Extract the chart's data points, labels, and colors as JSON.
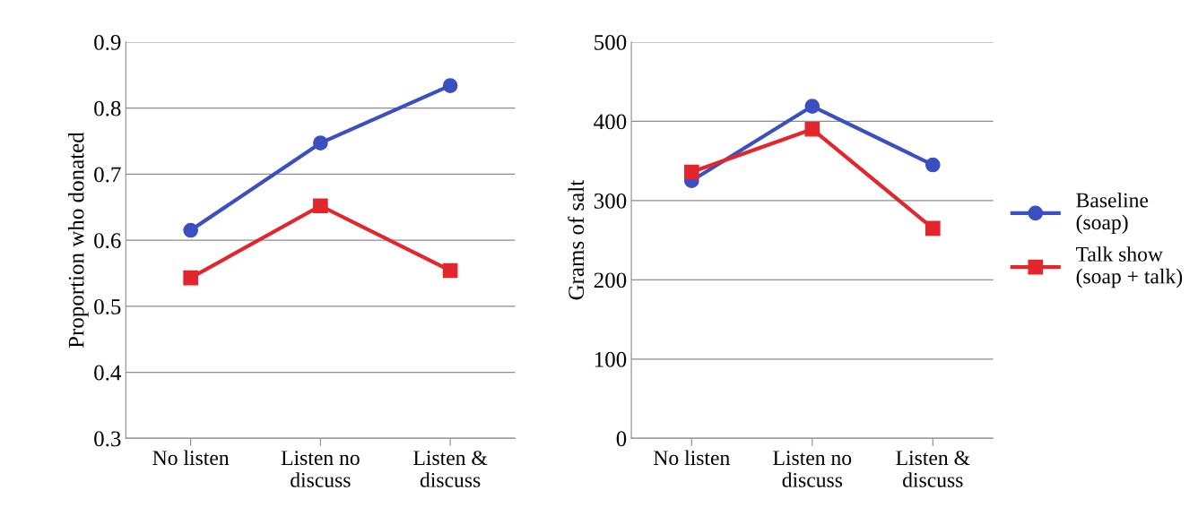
{
  "chart_data": [
    {
      "type": "line",
      "ylabel": "Proportion who donated",
      "categories": [
        "No listen",
        "Listen no\ndiscuss",
        "Listen &\ndiscuss"
      ],
      "ylim": [
        0.3,
        0.9
      ],
      "yticks": [
        0.3,
        0.4,
        0.5,
        0.6,
        0.7,
        0.8,
        0.9
      ],
      "grid": "y",
      "legend": false,
      "series": [
        {
          "color": "#3a4fc0",
          "marker": "circle",
          "values": [
            0.615,
            0.747,
            0.834
          ]
        },
        {
          "color": "#e3262d",
          "marker": "square",
          "values": [
            0.543,
            0.652,
            0.554
          ]
        }
      ]
    },
    {
      "type": "line",
      "ylabel": "Grams of salt",
      "categories": [
        "No listen",
        "Listen no\ndiscuss",
        "Listen &\ndiscuss"
      ],
      "ylim": [
        0,
        500
      ],
      "yticks": [
        0,
        100,
        200,
        300,
        400,
        500
      ],
      "grid": "y",
      "legend": "right",
      "series": [
        {
          "name": "Baseline\n(soap)",
          "color": "#3a4fc0",
          "marker": "circle",
          "values": [
            325,
            419,
            345
          ]
        },
        {
          "name": "Talk show\n(soap + talk)",
          "color": "#e3262d",
          "marker": "square",
          "values": [
            336,
            390,
            265
          ]
        }
      ]
    }
  ]
}
